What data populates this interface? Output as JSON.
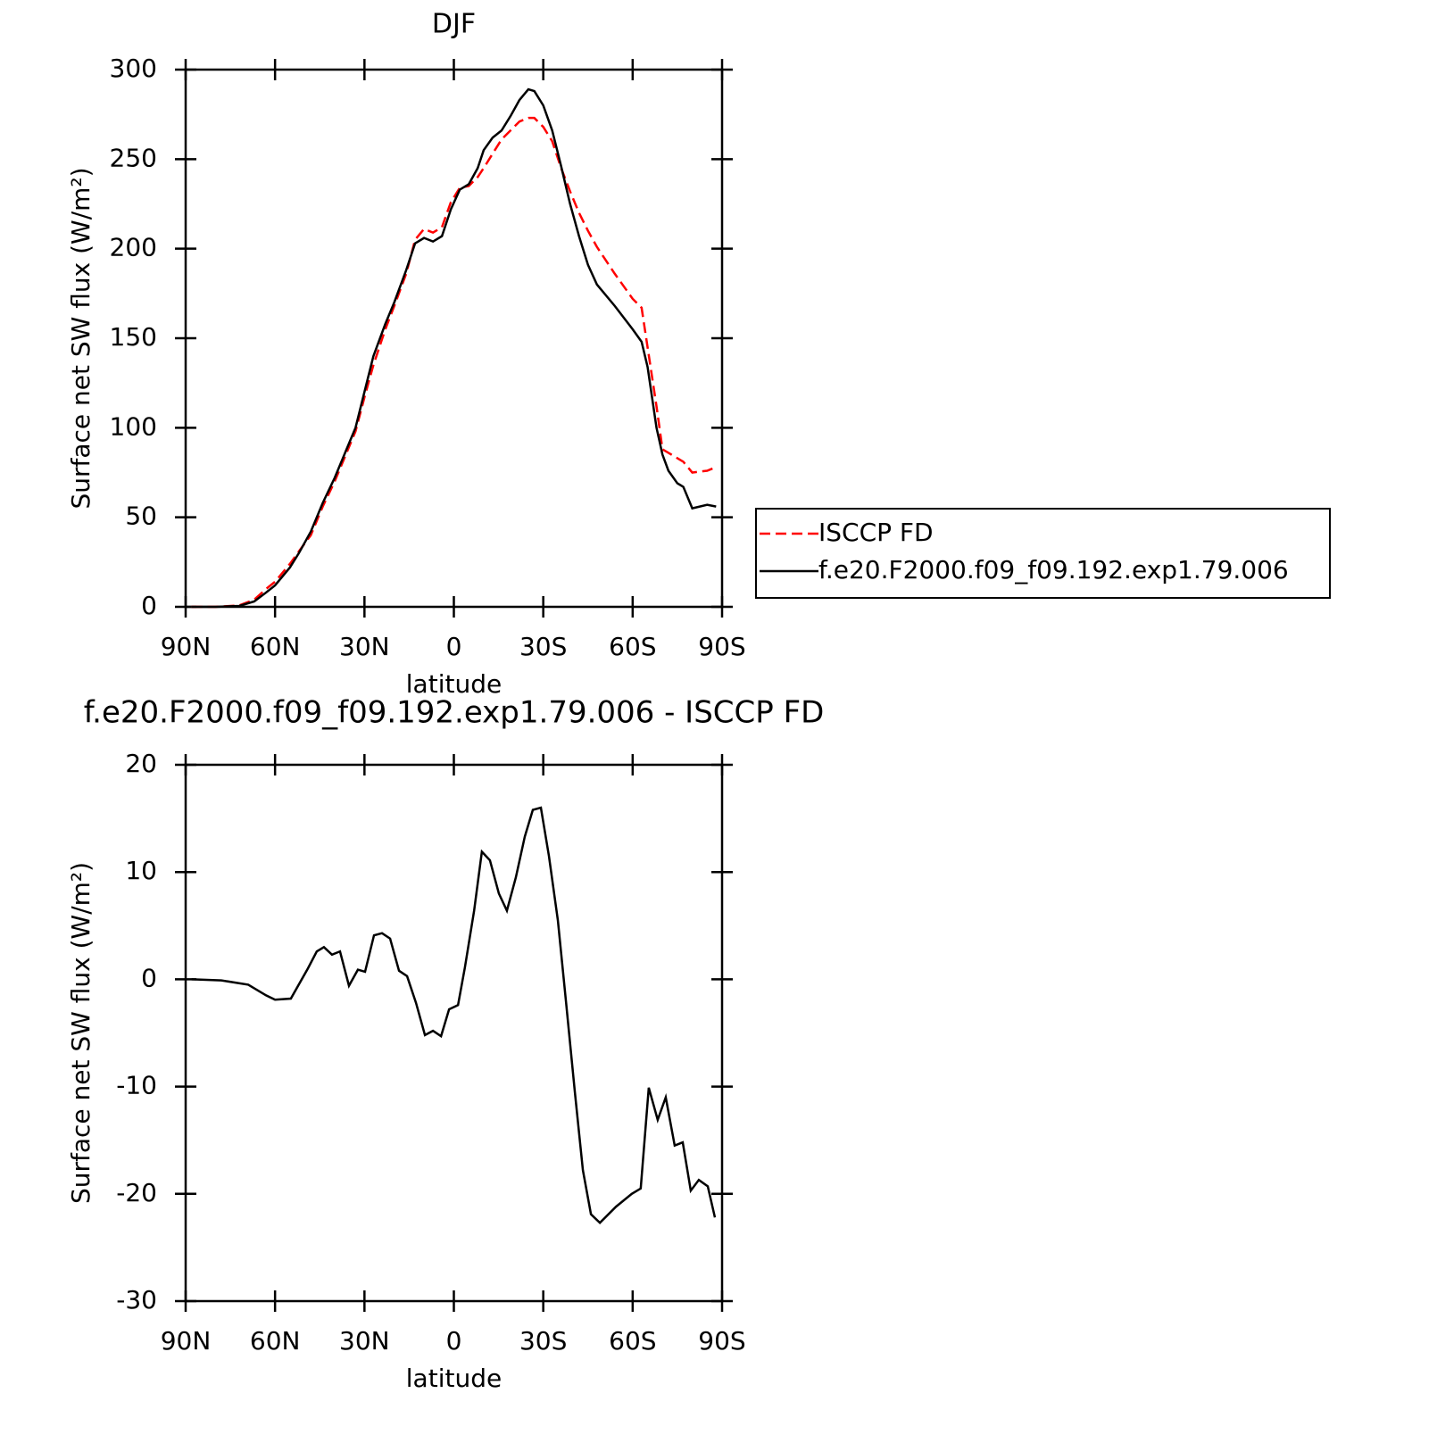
{
  "chart_data": [
    {
      "type": "line",
      "title": "DJF",
      "xlabel": "latitude",
      "ylabel": "Surface net SW flux (W/m²)",
      "xlim": [
        90,
        -90
      ],
      "xticks": [
        {
          "value": 90,
          "label": "90N"
        },
        {
          "value": 60,
          "label": "60N"
        },
        {
          "value": 30,
          "label": "30N"
        },
        0,
        {
          "value": -30,
          "label": "30S"
        },
        {
          "value": -60,
          "label": "60S"
        },
        {
          "value": -90,
          "label": "90S"
        }
      ],
      "ylim": [
        0,
        300
      ],
      "yticks": [
        0,
        50,
        100,
        150,
        200,
        250,
        300
      ],
      "legend": "right",
      "x": [
        88,
        80,
        72,
        67,
        63,
        60,
        55,
        52,
        48,
        44,
        40,
        36,
        33,
        30,
        27,
        23,
        20,
        16,
        13,
        10,
        7,
        4,
        1,
        -2,
        -5,
        -8,
        -10,
        -13,
        -16,
        -19,
        -22,
        -25,
        -27,
        -30,
        -33,
        -36,
        -39,
        -42,
        -45,
        -48,
        -54,
        -60,
        -63,
        -65,
        -68,
        -70,
        -72,
        -75,
        -77,
        -80,
        -85,
        -88
      ],
      "series": [
        {
          "name": "ISCCP FD",
          "color": "#ff0000",
          "dashed": true,
          "values": [
            0,
            0,
            0.8,
            4,
            10,
            14,
            24,
            31,
            40,
            56,
            70,
            86,
            98,
            117,
            135,
            155,
            168,
            186,
            205,
            211,
            209,
            212,
            226,
            234,
            235,
            240,
            245,
            253,
            261,
            266,
            271,
            273,
            273,
            268,
            260,
            245,
            232,
            220,
            210,
            201,
            186,
            172,
            167,
            145,
            112,
            88,
            86,
            83,
            81,
            75,
            76,
            78
          ]
        },
        {
          "name": "f.e20.F2000.f09_f09.192.exp1.79.006",
          "color": "#000000",
          "dashed": false,
          "values": [
            0,
            0,
            0.5,
            3,
            8,
            12,
            22,
            30,
            42,
            58,
            72,
            88,
            100,
            120,
            140,
            158,
            170,
            188,
            203,
            206,
            204,
            207,
            222,
            233,
            236,
            245,
            255,
            262,
            266,
            274,
            283,
            289,
            288,
            280,
            266,
            246,
            225,
            207,
            191,
            180,
            168,
            155,
            148,
            134,
            100,
            85,
            76,
            69,
            67,
            55,
            57,
            56
          ]
        }
      ]
    },
    {
      "type": "line",
      "title": "f.e20.F2000.f09_f09.192.exp1.79.006 - ISCCP FD",
      "xlabel": "latitude",
      "ylabel": "Surface net SW flux (W/m²)",
      "xlim": [
        90,
        -90
      ],
      "xticks": [
        {
          "value": 90,
          "label": "90N"
        },
        {
          "value": 60,
          "label": "60N"
        },
        {
          "value": 30,
          "label": "30N"
        },
        0,
        {
          "value": -30,
          "label": "30S"
        },
        {
          "value": -60,
          "label": "60S"
        },
        {
          "value": -90,
          "label": "90S"
        }
      ],
      "ylim": [
        -30,
        20
      ],
      "yticks": [
        -30,
        -20,
        -10,
        0,
        10,
        20
      ],
      "x": [
        88,
        78,
        69,
        63,
        60,
        54.7,
        49,
        46,
        43.6,
        40.9,
        38.2,
        35.2,
        32.2,
        29.8,
        26.8,
        24.1,
        21.4,
        18.4,
        15.7,
        12.7,
        9.7,
        7,
        4.3,
        1.6,
        -1.4,
        -3.7,
        -6.8,
        -9.4,
        -12.1,
        -15.1,
        -17.8,
        -20.8,
        -23.8,
        -26.5,
        -29.2,
        -31.9,
        -34.9,
        -37.6,
        -40.6,
        -43.3,
        -46,
        -49,
        -54.4,
        -59.7,
        -62.7,
        -65.4,
        -68.4,
        -71.1,
        -74.1,
        -76.8,
        -79.5,
        -82.2,
        -85.2,
        -87.6
      ],
      "series": [
        {
          "color": "#000000",
          "dashed": false,
          "values": [
            0,
            -0.1,
            -0.5,
            -1.5,
            -1.9,
            -1.8,
            1.0,
            2.6,
            3.0,
            2.3,
            2.6,
            -0.6,
            0.9,
            0.7,
            4.1,
            4.3,
            3.8,
            0.8,
            0.3,
            -2.2,
            -5.2,
            -4.8,
            -5.3,
            -2.8,
            -2.4,
            1.1,
            6.4,
            11.9,
            11.1,
            8.0,
            6.4,
            9.5,
            13.3,
            15.8,
            16,
            11.5,
            5.5,
            -2,
            -10.5,
            -17.8,
            -21.9,
            -22.7,
            -21.2,
            -20,
            -19.5,
            -10.1,
            -13.1,
            -11,
            -15.5,
            -15.2,
            -19.7,
            -18.7,
            -19.3,
            -22.2
          ]
        }
      ]
    }
  ]
}
